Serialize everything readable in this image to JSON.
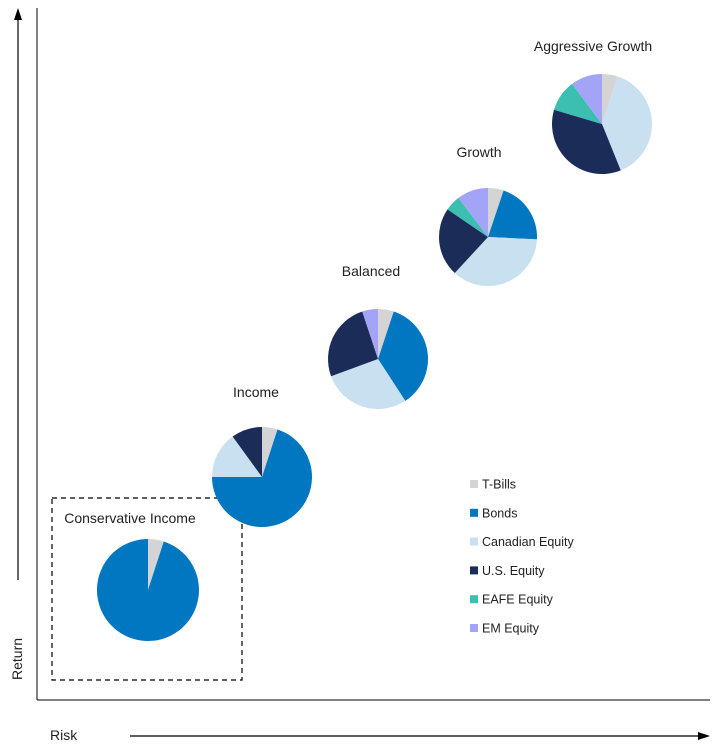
{
  "chart_data": {
    "type": "pie",
    "xlabel": "Risk",
    "ylabel": "Return",
    "legend_position": "right",
    "asset_classes": [
      {
        "name": "T-Bills",
        "color": "#d4d4d4"
      },
      {
        "name": "Bonds",
        "color": "#0077c0"
      },
      {
        "name": "Canadian Equity",
        "color": "#c8e0f0"
      },
      {
        "name": "U.S. Equity",
        "color": "#1b2c58"
      },
      {
        "name": "EAFE Equity",
        "color": "#3cbeb1"
      },
      {
        "name": "EM Equity",
        "color": "#a3a4f7"
      }
    ],
    "portfolios": [
      {
        "name": "Conservative Income",
        "values": [
          5,
          95,
          0,
          0,
          0,
          0
        ],
        "highlighted": true
      },
      {
        "name": "Income",
        "values": [
          5,
          70,
          15,
          10,
          0,
          0
        ]
      },
      {
        "name": "Balanced",
        "values": [
          5,
          35,
          28,
          25,
          0,
          5
        ]
      },
      {
        "name": "Growth",
        "values": [
          5,
          20,
          35,
          22,
          5,
          10
        ]
      },
      {
        "name": "Aggressive Growth",
        "values": [
          5,
          0,
          38,
          35,
          10,
          10
        ]
      }
    ]
  }
}
